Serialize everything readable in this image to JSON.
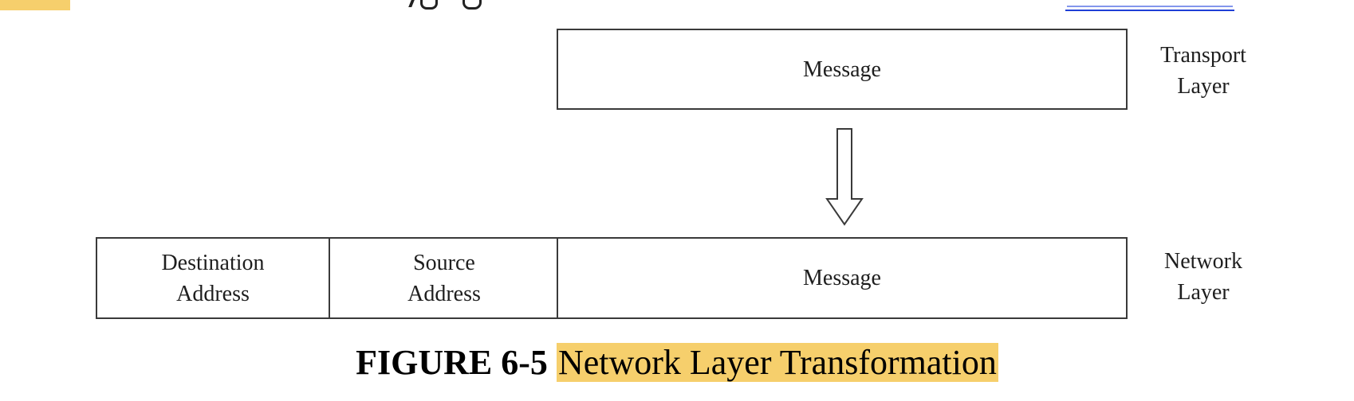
{
  "top": {
    "accent_color": "#f6cf6c",
    "link_color": "#1f3fd6"
  },
  "diagram": {
    "transport": {
      "message": "Message",
      "label_line1": "Transport",
      "label_line2": "Layer"
    },
    "arrow": {
      "icon": "down-arrow-icon"
    },
    "network": {
      "destination_line1": "Destination",
      "destination_line2": "Address",
      "source_line1": "Source",
      "source_line2": "Address",
      "message": "Message",
      "label_line1": "Network",
      "label_line2": "Layer"
    }
  },
  "caption": {
    "number": "FIGURE 6-5",
    "title": "Network Layer Transformation",
    "highlight_color": "#f6cf6c"
  }
}
